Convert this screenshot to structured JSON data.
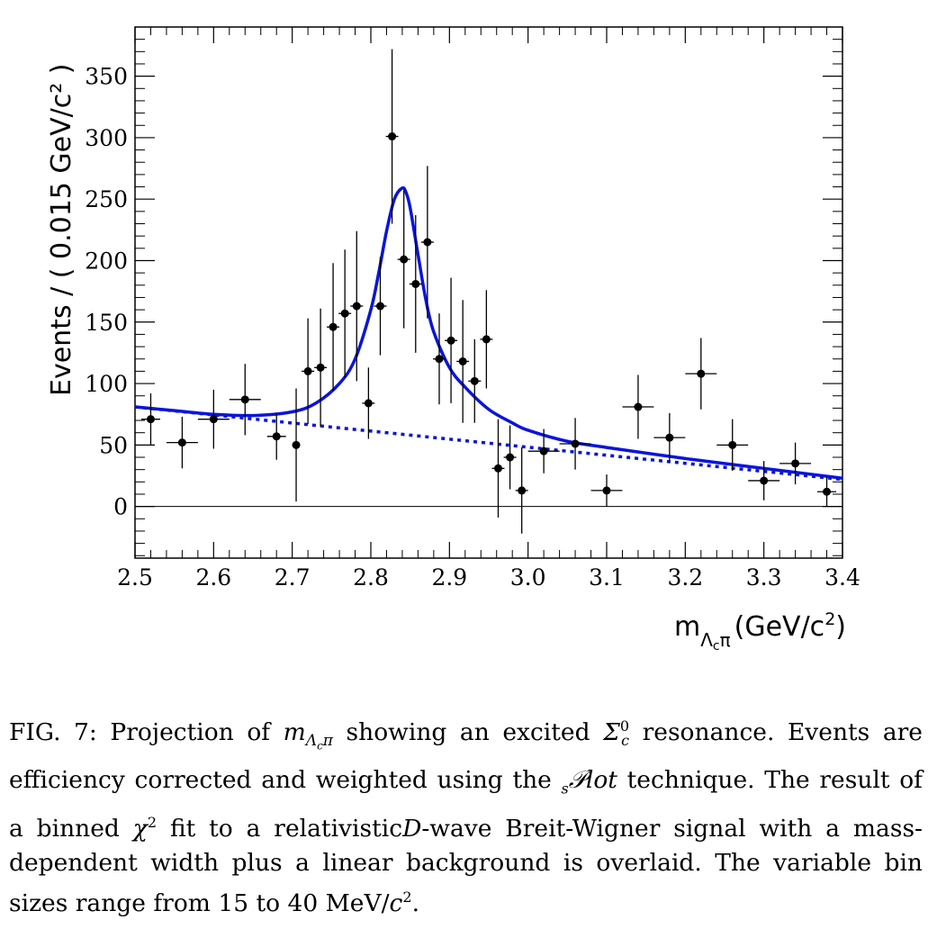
{
  "chart_data": {
    "type": "scatter",
    "title": "",
    "xlabel": "m(GeV/c²)",
    "xlabel_parts": {
      "base": "m",
      "sub": "Λ",
      "subsub": "c",
      "sub2": "π",
      "unit_open": "(GeV/c",
      "unit_sup": "2",
      "unit_close": ")"
    },
    "ylabel": "Events / ( 0.015 GeV/c² )",
    "xlim": [
      2.5,
      3.4
    ],
    "ylim": [
      -42,
      390
    ],
    "x_ticks": [
      "2.5",
      "2.6",
      "2.7",
      "2.8",
      "2.9",
      "3.0",
      "3.1",
      "3.2",
      "3.3",
      "3.4"
    ],
    "x_tick_values": [
      2.5,
      2.6,
      2.7,
      2.8,
      2.9,
      3.0,
      3.1,
      3.2,
      3.3,
      3.4
    ],
    "y_ticks": [
      "0",
      "50",
      "100",
      "150",
      "200",
      "250",
      "300",
      "350"
    ],
    "y_tick_values": [
      0,
      50,
      100,
      150,
      200,
      250,
      300,
      350
    ],
    "grid": false,
    "data_points": [
      {
        "x": 2.52,
        "y": 71,
        "xerr": 0.012,
        "yerr": 21
      },
      {
        "x": 2.56,
        "y": 52,
        "xerr": 0.02,
        "yerr": 21
      },
      {
        "x": 2.6,
        "y": 71,
        "xerr": 0.02,
        "yerr": 24
      },
      {
        "x": 2.64,
        "y": 87,
        "xerr": 0.02,
        "yerr": 29
      },
      {
        "x": 2.68,
        "y": 57,
        "xerr": 0.012,
        "yerr": 19
      },
      {
        "x": 2.705,
        "y": 50,
        "xerr": 0.005,
        "yerr": 46
      },
      {
        "x": 2.72,
        "y": 110,
        "xerr": 0.008,
        "yerr": 43
      },
      {
        "x": 2.736,
        "y": 113,
        "xerr": 0.008,
        "yerr": 48
      },
      {
        "x": 2.752,
        "y": 146,
        "xerr": 0.008,
        "yerr": 52
      },
      {
        "x": 2.767,
        "y": 157,
        "xerr": 0.008,
        "yerr": 52
      },
      {
        "x": 2.782,
        "y": 163,
        "xerr": 0.008,
        "yerr": 61
      },
      {
        "x": 2.797,
        "y": 84,
        "xerr": 0.008,
        "yerr": 29
      },
      {
        "x": 2.812,
        "y": 163,
        "xerr": 0.008,
        "yerr": 40
      },
      {
        "x": 2.827,
        "y": 301,
        "xerr": 0.008,
        "yerr": 71
      },
      {
        "x": 2.842,
        "y": 201,
        "xerr": 0.008,
        "yerr": 56
      },
      {
        "x": 2.857,
        "y": 181,
        "xerr": 0.008,
        "yerr": 56
      },
      {
        "x": 2.872,
        "y": 215,
        "xerr": 0.008,
        "yerr": 62
      },
      {
        "x": 2.887,
        "y": 120,
        "xerr": 0.008,
        "yerr": 37
      },
      {
        "x": 2.902,
        "y": 135,
        "xerr": 0.008,
        "yerr": 51
      },
      {
        "x": 2.917,
        "y": 118,
        "xerr": 0.008,
        "yerr": 50
      },
      {
        "x": 2.932,
        "y": 102,
        "xerr": 0.008,
        "yerr": 34
      },
      {
        "x": 2.947,
        "y": 136,
        "xerr": 0.008,
        "yerr": 40
      },
      {
        "x": 2.962,
        "y": 31,
        "xerr": 0.008,
        "yerr": 40
      },
      {
        "x": 2.977,
        "y": 40,
        "xerr": 0.008,
        "yerr": 26
      },
      {
        "x": 2.992,
        "y": 13,
        "xerr": 0.008,
        "yerr": 35
      },
      {
        "x": 3.02,
        "y": 45,
        "xerr": 0.02,
        "yerr": 18
      },
      {
        "x": 3.06,
        "y": 51,
        "xerr": 0.02,
        "yerr": 21
      },
      {
        "x": 3.1,
        "y": 13,
        "xerr": 0.02,
        "yerr": 13
      },
      {
        "x": 3.14,
        "y": 81,
        "xerr": 0.02,
        "yerr": 26
      },
      {
        "x": 3.18,
        "y": 56,
        "xerr": 0.02,
        "yerr": 20
      },
      {
        "x": 3.22,
        "y": 108,
        "xerr": 0.02,
        "yerr": 29
      },
      {
        "x": 3.26,
        "y": 50,
        "xerr": 0.02,
        "yerr": 21
      },
      {
        "x": 3.3,
        "y": 21,
        "xerr": 0.02,
        "yerr": 16
      },
      {
        "x": 3.34,
        "y": 35,
        "xerr": 0.02,
        "yerr": 17
      },
      {
        "x": 3.38,
        "y": 12,
        "xerr": 0.012,
        "yerr": 12
      }
    ],
    "fit_curve": {
      "color": "#0a14dc",
      "x": [
        2.5,
        2.55,
        2.6,
        2.65,
        2.7,
        2.73,
        2.76,
        2.78,
        2.8,
        2.81,
        2.82,
        2.83,
        2.84,
        2.845,
        2.85,
        2.86,
        2.87,
        2.88,
        2.9,
        2.92,
        2.95,
        2.98,
        3.0,
        3.05,
        3.1,
        3.2,
        3.3,
        3.4
      ],
      "y": [
        81,
        78,
        75,
        74,
        77,
        84,
        100,
        120,
        160,
        190,
        224,
        250,
        259,
        255,
        243,
        205,
        168,
        142,
        113,
        97,
        79,
        68,
        62,
        53,
        48,
        39,
        31,
        23
      ]
    },
    "background_curve": {
      "color": "#0a14dc",
      "style": "dotted",
      "x": [
        2.5,
        3.4
      ],
      "y": [
        81,
        22
      ]
    },
    "reference_line_y": 0
  },
  "caption": {
    "fig_label": "FIG. 7:",
    "text_1": "Projection of",
    "math_1_base": "m",
    "math_1_sub": "Λ",
    "math_1_subsub": "c",
    "math_1_sub2": "π",
    "text_2": "showing an excited",
    "math_2_base": "Σ",
    "math_2_sub": "c",
    "math_2_sup": "0",
    "text_3": "resonance. Events are efficiency corrected and weighted using the",
    "splot_sub": "s",
    "splot_name": "𝒫lot",
    "text_4": "technique. The result of a binned",
    "chi": "χ",
    "chi_sup": "2",
    "text_5": "fit to a relativistic",
    "dwave_d": "D",
    "text_6": "-wave Breit-Wigner signal with a mass-dependent width plus a linear background is overlaid. The variable bin sizes range from 15 to 40 MeV/",
    "unit_c": "c",
    "unit_sup": "2",
    "text_end": "."
  }
}
